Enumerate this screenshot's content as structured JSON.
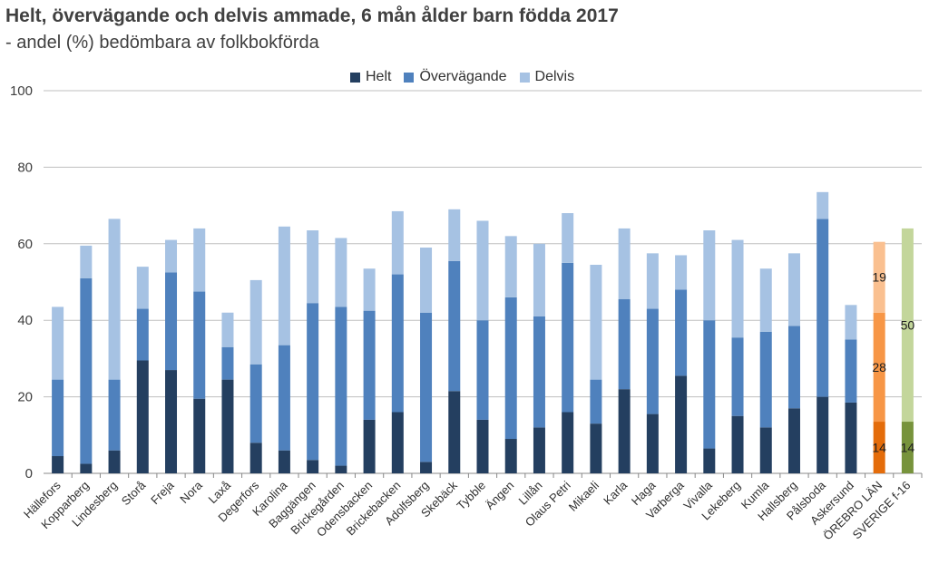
{
  "chart_data": {
    "type": "bar",
    "stacked": true,
    "title": "Helt, övervägande och delvis ammade, 6 mån ålder barn födda 2017",
    "subtitle": "- andel (%) bedömbara av folkbokförda",
    "ylim": [
      0,
      100
    ],
    "yticks": [
      "0",
      "20",
      "40",
      "60",
      "80",
      "100"
    ],
    "legend_position": "top",
    "grid": true,
    "categories": [
      "Hällefors",
      "Kopparberg",
      "Lindesberg",
      "Storå",
      "Freja",
      "Nora",
      "Laxå",
      "Degerfors",
      "Karolina",
      "Baggängen",
      "Brickegården",
      "Odensbacken",
      "Brickebacken",
      "Adolfsberg",
      "Skebäck",
      "Tybble",
      "Ängen",
      "Lillån",
      "Olaus Petri",
      "Mikaeli",
      "Karla",
      "Haga",
      "Varberga",
      "Vivalla",
      "Lekeberg",
      "Kumla",
      "Hallsberg",
      "Pålsboda",
      "Askersund",
      "ÖREBRO LÄN",
      "SVERIGE f-16"
    ],
    "series": [
      {
        "name": "Helt",
        "color": "#243f60",
        "values": [
          4.5,
          2.5,
          6,
          29.5,
          27,
          19.5,
          24.5,
          8,
          6,
          3.5,
          2,
          14,
          16,
          3,
          21.5,
          14,
          9,
          12,
          16,
          13,
          22,
          15.5,
          25.5,
          6.5,
          15,
          12,
          17,
          20,
          18.5,
          13.5,
          13.5
        ]
      },
      {
        "name": "Övervägande",
        "color": "#4f81bd",
        "values": [
          20,
          48.5,
          18.5,
          13.5,
          25.5,
          28,
          8.5,
          20.5,
          27.5,
          41,
          41.5,
          28.5,
          36,
          39,
          34,
          26,
          37,
          29,
          39,
          11.5,
          23.5,
          27.5,
          22.5,
          33.5,
          20.5,
          25,
          21.5,
          46.5,
          16.5,
          28.5,
          0
        ]
      },
      {
        "name": "Delvis",
        "color": "#a6c2e3",
        "values": [
          19,
          8.5,
          42,
          11,
          8.5,
          16.5,
          9,
          22,
          31,
          19,
          18,
          11,
          16.5,
          17,
          13.5,
          26,
          16,
          19,
          13,
          30,
          18.5,
          14.5,
          9,
          23.5,
          25.5,
          16.5,
          19,
          7,
          9,
          18.5,
          50.5
        ]
      }
    ],
    "highlight": [
      {
        "category": "ÖREBRO LÄN",
        "colors": [
          "#e46c0a",
          "#f79646",
          "#fac090"
        ],
        "labels": [
          "14",
          "28",
          "19"
        ]
      },
      {
        "category": "SVERIGE f-16",
        "colors": [
          "#77933c",
          "#77933c",
          "#c3d69b"
        ],
        "labels": [
          "14",
          "",
          "50"
        ]
      }
    ]
  }
}
